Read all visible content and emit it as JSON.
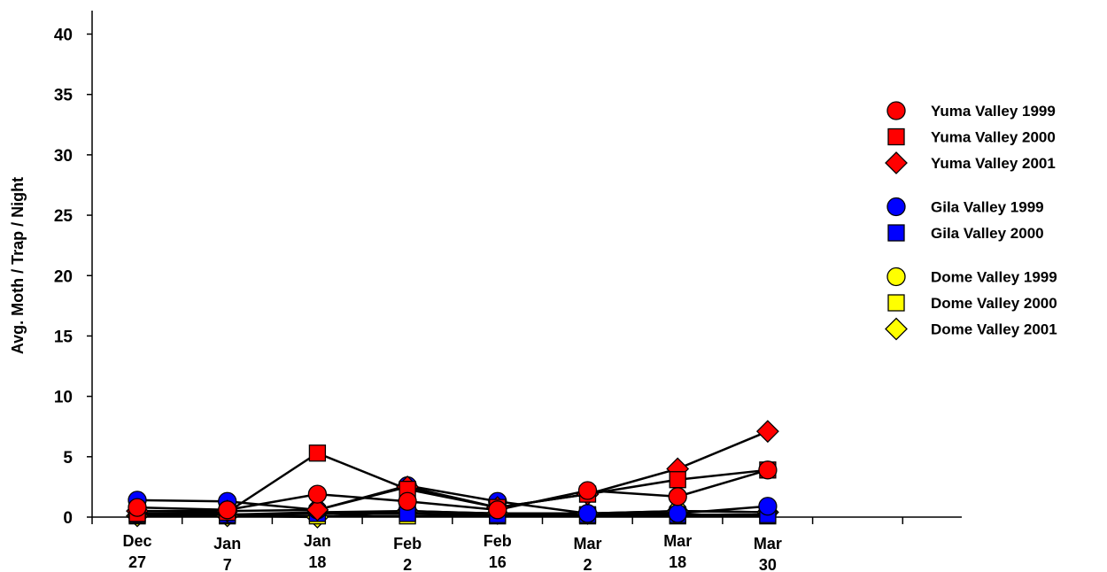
{
  "chart_data": {
    "type": "line",
    "ylabel": "Avg. Moth / Trap / Night",
    "ylim": [
      0,
      40
    ],
    "yticks": [
      0,
      5,
      10,
      15,
      20,
      25,
      30,
      35,
      40
    ],
    "categories": [
      [
        "Dec",
        "27"
      ],
      [
        "Jan",
        "7"
      ],
      [
        "Jan",
        "18"
      ],
      [
        "Feb",
        "2"
      ],
      [
        "Feb",
        "16"
      ],
      [
        "Mar",
        "2"
      ],
      [
        "Mar",
        "18"
      ],
      [
        "Mar",
        "30"
      ]
    ],
    "grid": false,
    "legend_position": "right",
    "series": [
      {
        "name": "Yuma Valley 1999",
        "marker": "circle",
        "color": "#ff0000",
        "values": [
          0.8,
          0.6,
          1.9,
          1.3,
          0.6,
          2.2,
          1.7,
          3.9
        ]
      },
      {
        "name": "Yuma Valley 2000",
        "marker": "square",
        "color": "#ff0000",
        "values": [
          0.3,
          0.4,
          5.3,
          2.3,
          0.8,
          1.9,
          3.1,
          3.9
        ]
      },
      {
        "name": "Yuma Valley 2001",
        "marker": "diamond",
        "color": "#ff0000",
        "values": [
          0.5,
          0.5,
          0.6,
          2.5,
          0.8,
          1.9,
          4.0,
          7.1
        ]
      },
      {
        "name": "Gila Valley 1999",
        "marker": "circle",
        "color": "#0000ff",
        "values": [
          1.4,
          1.3,
          0.6,
          2.6,
          1.3,
          0.3,
          0.3,
          0.9
        ]
      },
      {
        "name": "Gila Valley 2000",
        "marker": "square",
        "color": "#0000ff",
        "values": [
          0.2,
          0.2,
          0.3,
          0.3,
          0.2,
          0.2,
          0.2,
          0.2
        ]
      },
      {
        "name": "Dome Valley 1999",
        "marker": "circle",
        "color": "#ffff00",
        "values": [
          0.2,
          0.2,
          0.4,
          0.5,
          0.3,
          0.3,
          0.5,
          0.4
        ]
      },
      {
        "name": "Dome Valley 2000",
        "marker": "square",
        "color": "#ffff00",
        "values": [
          0.1,
          0.1,
          0.1,
          0.1,
          0.1,
          0.1,
          0.1,
          0.1
        ]
      },
      {
        "name": "Dome Valley 2001",
        "marker": "diamond",
        "color": "#ffff00",
        "values": [
          0.1,
          0.1,
          0.0,
          0.5,
          0.3,
          0.3,
          0.5,
          0.4
        ]
      }
    ],
    "legend_groups": [
      [
        0,
        1,
        2
      ],
      [
        3,
        4
      ],
      [
        5,
        6,
        7
      ]
    ]
  }
}
